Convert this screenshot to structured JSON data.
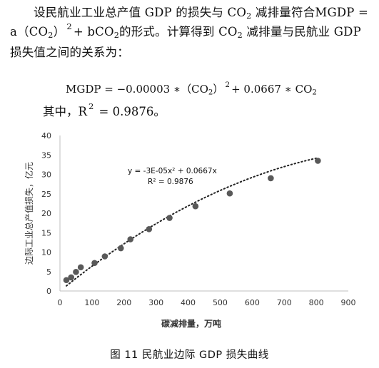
{
  "paragraph": {
    "p1_a": "设民航业工业总产值 GDP 的损失与 CO",
    "p1_sub": "2",
    "p1_b": " 减排量符合",
    "p1_formula_lhs": "MGDP = a（CO",
    "p1_formula_sub": "2",
    "p1_formula_mid": "）",
    "p1_formula_sup": "2",
    "p1_formula_rhs": "+ bCO",
    "p1_formula_sub2": "2",
    "p1_c": "的形式。计算得到 CO",
    "p1_sub3": "2",
    "p1_d": " 减排量与民航业 GDP 损失值之间的关系为："
  },
  "equation": {
    "part1": "MGDP = −0.00003 ∗（CO",
    "sub1": "2",
    "part2": "）",
    "sup": "2",
    "part3": "+ 0.0667 ∗ CO",
    "sub2": "2"
  },
  "r2_line": {
    "prefix": "其中，R",
    "sup": "2",
    "value": " = 0.9876。"
  },
  "chart_data": {
    "type": "scatter",
    "xlabel": "碳减排量，万吨",
    "ylabel": "边际工业总产值损失，亿元",
    "xlim": [
      0,
      900
    ],
    "ylim": [
      0,
      40
    ],
    "xticks": [
      0,
      100,
      200,
      300,
      400,
      500,
      600,
      700,
      800,
      900
    ],
    "yticks": [
      0,
      5,
      10,
      15,
      20,
      25,
      30,
      35,
      40
    ],
    "points": [
      {
        "x": 20,
        "y": 2.8
      },
      {
        "x": 35,
        "y": 3.5
      },
      {
        "x": 50,
        "y": 4.9
      },
      {
        "x": 65,
        "y": 6.1
      },
      {
        "x": 108,
        "y": 7.2
      },
      {
        "x": 140,
        "y": 8.9
      },
      {
        "x": 190,
        "y": 11.0
      },
      {
        "x": 220,
        "y": 13.3
      },
      {
        "x": 278,
        "y": 15.9
      },
      {
        "x": 342,
        "y": 18.8
      },
      {
        "x": 423,
        "y": 21.8
      },
      {
        "x": 530,
        "y": 25.1
      },
      {
        "x": 658,
        "y": 29.0
      },
      {
        "x": 805,
        "y": 33.5
      }
    ],
    "trendline": {
      "a": -3e-05,
      "b": 0.0667,
      "x_from": 20,
      "x_to": 805
    },
    "trend_equation": "y = -3E-05x² + 0.0667x",
    "trend_r2": "R² = 0.9876",
    "grid": false,
    "marker_color": "#595959",
    "axis_color": "#bfbfbf"
  },
  "caption": "图 11   民航业边际 GDP 损失曲线"
}
